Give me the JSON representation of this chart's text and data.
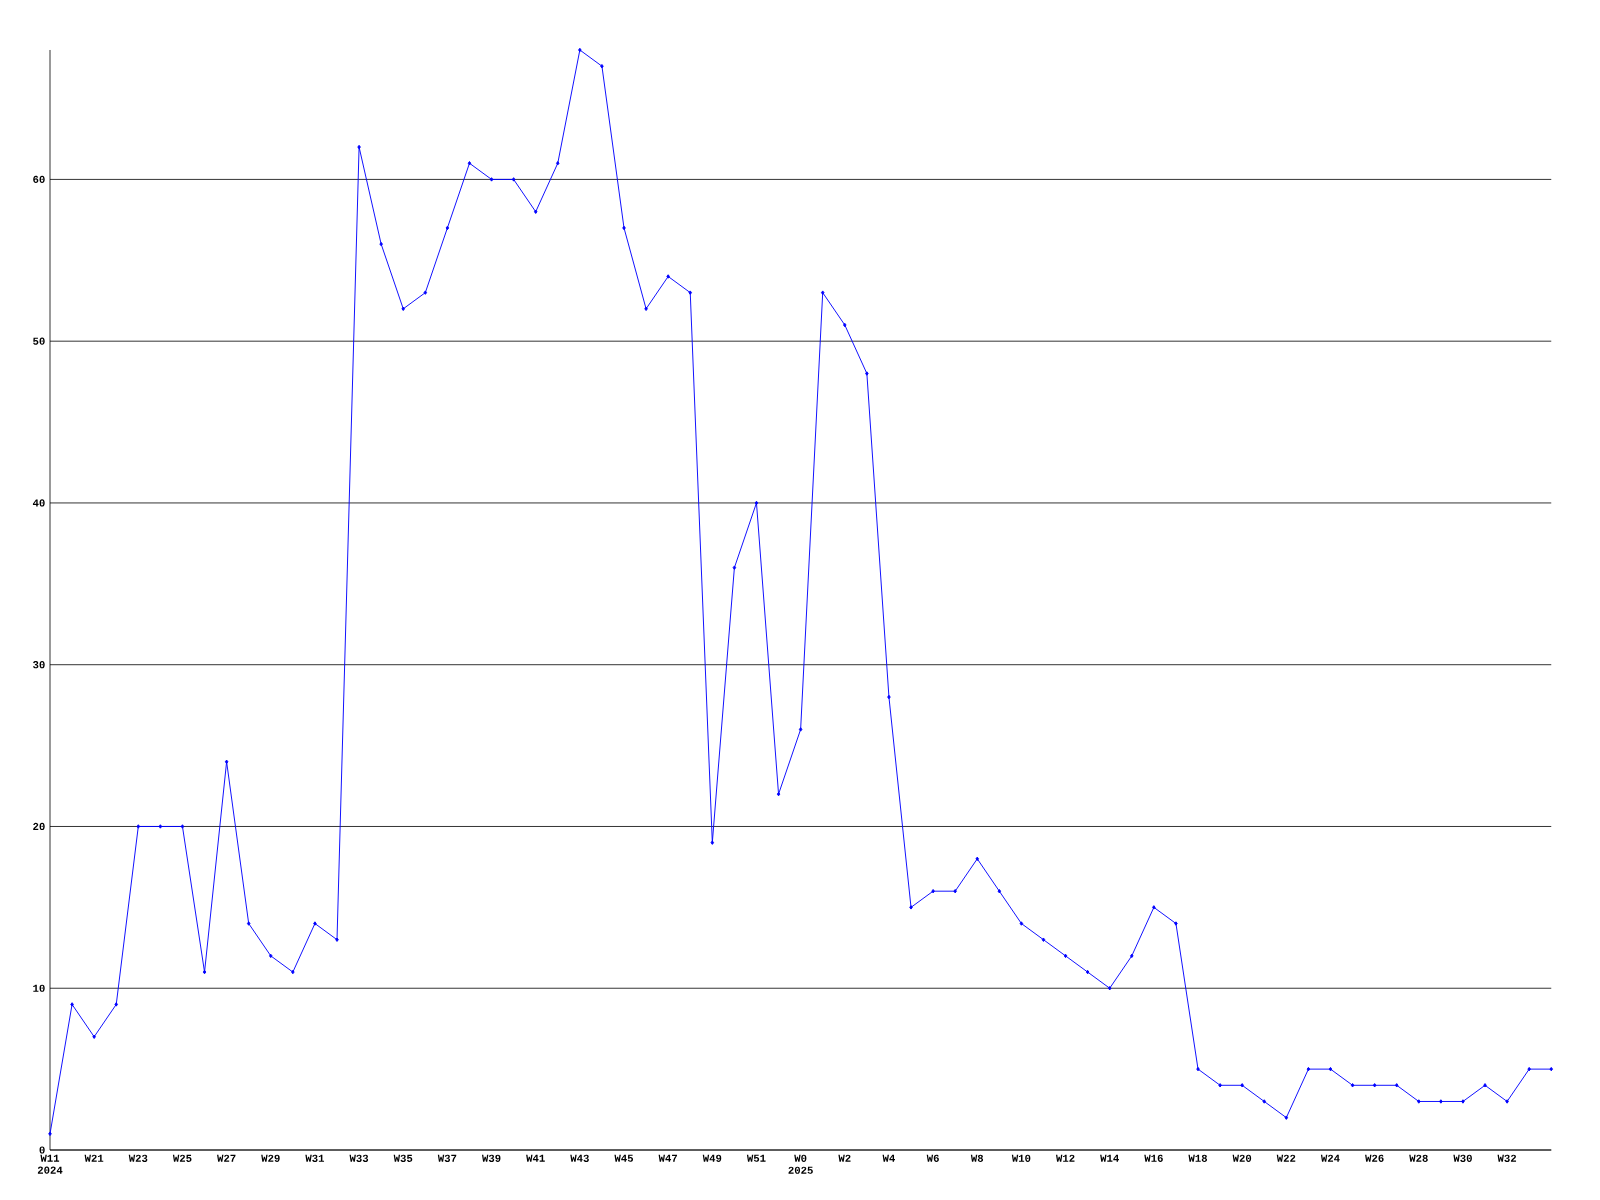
{
  "chart_data": {
    "type": "line",
    "categories": [
      "W11 2024",
      null,
      "W21",
      null,
      "W23",
      null,
      "W25",
      null,
      "W27",
      null,
      "W29",
      null,
      "W31",
      null,
      "W33",
      null,
      "W35",
      null,
      "W37",
      null,
      "W39",
      null,
      "W41",
      null,
      "W43",
      null,
      "W45",
      null,
      "W47",
      null,
      "W49",
      null,
      "W51",
      null,
      "W0 2025",
      null,
      "W2",
      null,
      "W4",
      null,
      "W6",
      null,
      "W8",
      null,
      "W10",
      null,
      "W12",
      null,
      "W14",
      null,
      "W16",
      null,
      "W18",
      null,
      "W20",
      null,
      "W22",
      null,
      "W24",
      null,
      "W26",
      null,
      "W28",
      null,
      "W30",
      null,
      "W32",
      null,
      null
    ],
    "series": [
      {
        "color": "#0000ff",
        "values": [
          1,
          9,
          7,
          9,
          20,
          20,
          20,
          11,
          24,
          14,
          12,
          11,
          14,
          13,
          62,
          56,
          52,
          53,
          57,
          61,
          60,
          60,
          58,
          61,
          68,
          67,
          57,
          52,
          54,
          53,
          19,
          36,
          40,
          22,
          26,
          53,
          51,
          48,
          28,
          15,
          16,
          16,
          18,
          16,
          14,
          13,
          12,
          11,
          10,
          12,
          15,
          14,
          5,
          4,
          4,
          3,
          2,
          5,
          5,
          4,
          4,
          4,
          3,
          3,
          3,
          4,
          3,
          5,
          5
        ]
      }
    ],
    "ylim": [
      0,
      68
    ],
    "yticks": [
      0,
      10,
      20,
      30,
      40,
      50,
      60
    ],
    "grid": "y",
    "marker": "diamond",
    "line_style": "solid"
  }
}
